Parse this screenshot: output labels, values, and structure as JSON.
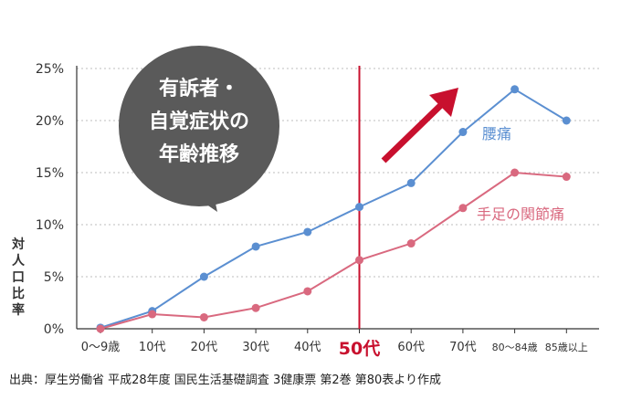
{
  "chart_data": {
    "type": "line",
    "categories": [
      "0〜9歳",
      "10代",
      "20代",
      "30代",
      "40代",
      "50代",
      "60代",
      "70代",
      "80〜84歳",
      "85歳以上"
    ],
    "highlight_category": "50代",
    "series": [
      {
        "name": "腰痛",
        "color": "#5b8fd1",
        "values": [
          0.1,
          1.7,
          5.0,
          7.9,
          9.3,
          11.7,
          14.0,
          18.9,
          23.0,
          20.0
        ]
      },
      {
        "name": "手足の関節痛",
        "color": "#d9697f",
        "values": [
          0.0,
          1.4,
          1.1,
          2.0,
          3.6,
          6.6,
          8.2,
          11.6,
          15.0,
          14.6
        ]
      }
    ],
    "yticks": [
      "0%",
      "5%",
      "10%",
      "15%",
      "20%",
      "25%"
    ],
    "ylim": [
      0,
      25
    ],
    "ylabel": "対人口比率",
    "annotation": [
      "有訴者・",
      "自覚症状の",
      "年齢推移"
    ],
    "source": "出典：厚生労働省 平成28年度 国民生活基礎調査 3健康票 第2巻 第80表より作成",
    "grid": true,
    "colors": {
      "highlight": "#c8102e",
      "bubble": "#5a5a5a",
      "arrow": "#c8102e"
    }
  }
}
